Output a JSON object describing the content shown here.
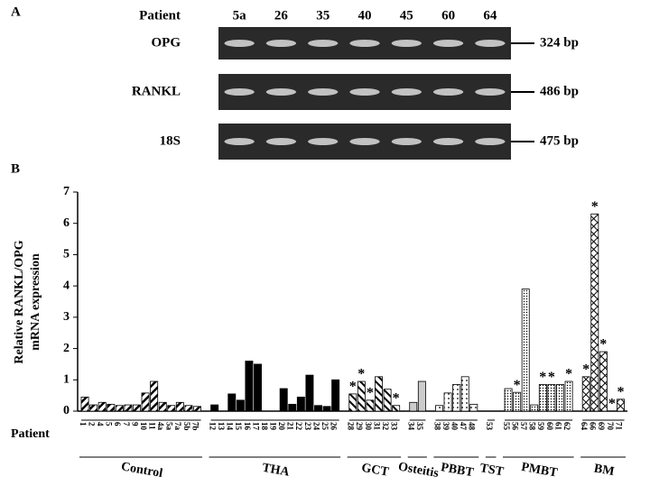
{
  "panel_a": {
    "letter": "A",
    "lane_title": "Patient",
    "lanes": [
      "5a",
      "26",
      "35",
      "40",
      "45",
      "60",
      "64"
    ],
    "rows": [
      {
        "name": "OPG",
        "size": "324 bp"
      },
      {
        "name": "RANKL",
        "size": "486 bp"
      },
      {
        "name": "18S",
        "size": "475 bp"
      }
    ]
  },
  "chart_data": {
    "type": "bar",
    "letter": "B",
    "ylabel": [
      "Relative RANKL/OPG",
      "mRNA expression"
    ],
    "xlabel": "Patient",
    "ylim": [
      0,
      7
    ],
    "yticks": [
      0,
      1,
      2,
      3,
      4,
      5,
      6,
      7
    ],
    "series": [
      {
        "name": "Control",
        "pattern": "diag",
        "categories": [
          "1",
          "2",
          "4",
          "5",
          "6",
          "7",
          "9",
          "10",
          "11",
          "4a",
          "5a",
          "7a",
          "5b",
          "7b"
        ],
        "values": [
          0.45,
          0.2,
          0.28,
          0.22,
          0.18,
          0.2,
          0.2,
          0.58,
          0.95,
          0.28,
          0.18,
          0.28,
          0.18,
          0.15
        ],
        "markers": [
          null,
          null,
          null,
          null,
          null,
          null,
          null,
          null,
          null,
          null,
          null,
          null,
          null,
          null
        ]
      },
      {
        "name": "THA",
        "pattern": "solid",
        "categories": [
          "12",
          "13",
          "14",
          "15",
          "16",
          "17",
          "18",
          "19",
          "20",
          "21",
          "22",
          "23",
          "24",
          "25",
          "26"
        ],
        "values": [
          0.2,
          0,
          0.55,
          0.35,
          1.6,
          1.5,
          0,
          0,
          0.72,
          0.22,
          0.45,
          1.15,
          0.18,
          0.15,
          1.0
        ],
        "markers": [
          null,
          null,
          null,
          null,
          null,
          null,
          null,
          null,
          null,
          null,
          null,
          null,
          null,
          null,
          null
        ]
      },
      {
        "name": "GCT",
        "pattern": "diag2",
        "categories": [
          "28",
          "29",
          "30",
          "31",
          "32",
          "33"
        ],
        "values": [
          0.55,
          0.95,
          0.35,
          1.1,
          0.7,
          0.18
        ],
        "markers": [
          "*",
          "*",
          "*",
          null,
          null,
          "*"
        ]
      },
      {
        "name": "Osteitis",
        "pattern": "gray",
        "categories": [
          "34",
          "35"
        ],
        "values": [
          0.28,
          0.95
        ],
        "markers": [
          null,
          null
        ]
      },
      {
        "name": "PBBT",
        "pattern": "dots",
        "categories": [
          "38",
          "39",
          "40",
          "47",
          "48"
        ],
        "values": [
          0.18,
          0.58,
          0.85,
          1.1,
          0.22
        ],
        "markers": [
          null,
          null,
          null,
          null,
          null
        ]
      },
      {
        "name": "TST",
        "pattern": "white",
        "categories": [
          "53"
        ],
        "values": [
          0
        ],
        "markers": [
          null
        ]
      },
      {
        "name": "PMBT",
        "pattern": "fine",
        "categories": [
          "55",
          "56",
          "57",
          "58",
          "59",
          "60",
          "61",
          "62"
        ],
        "values": [
          0.72,
          0.6,
          3.9,
          0.2,
          0.85,
          0.85,
          0.85,
          0.95
        ],
        "markers": [
          null,
          "*",
          null,
          null,
          "*",
          "*",
          null,
          "*"
        ]
      },
      {
        "name": "BM",
        "pattern": "cross",
        "categories": [
          "64",
          "66",
          "69",
          "70",
          "71"
        ],
        "values": [
          1.1,
          6.3,
          1.9,
          0,
          0.38
        ],
        "markers": [
          "*",
          "*",
          "*",
          "*",
          "*"
        ]
      }
    ]
  }
}
